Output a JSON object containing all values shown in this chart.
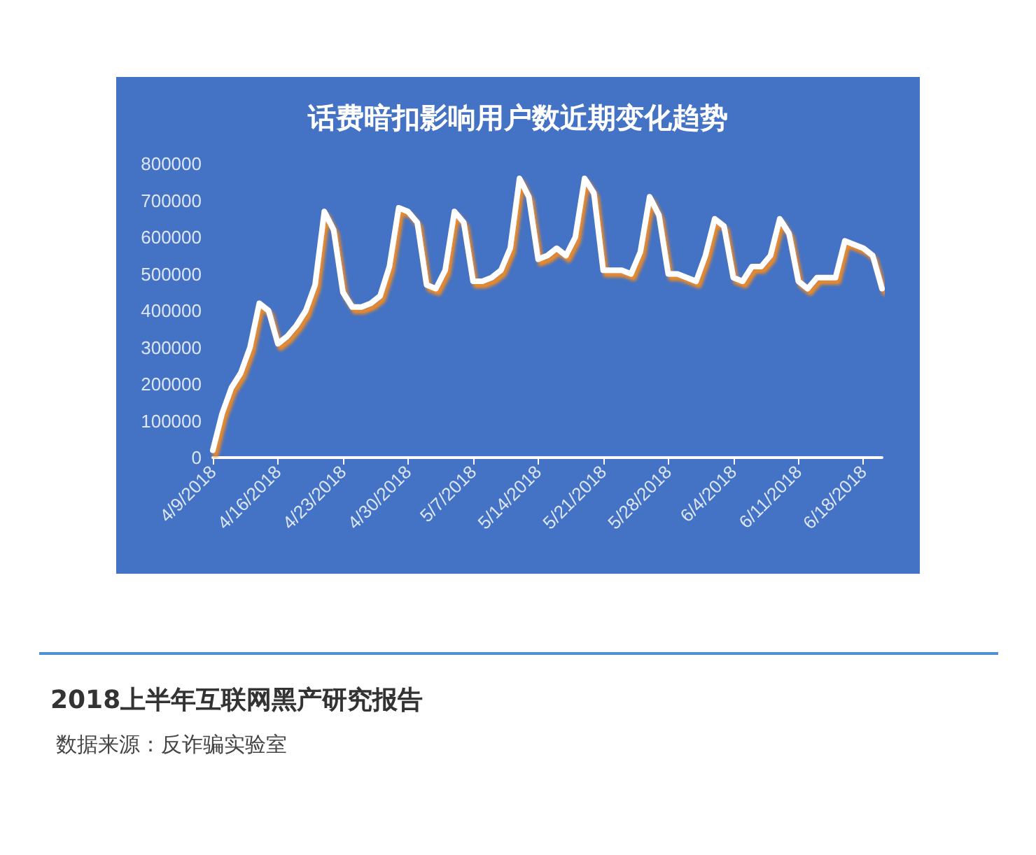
{
  "chart_data": {
    "type": "line",
    "title": "话费暗扣影响用户数近期变化趋势",
    "x": [
      "2018-04-09",
      "2018-04-10",
      "2018-04-11",
      "2018-04-12",
      "2018-04-13",
      "2018-04-14",
      "2018-04-15",
      "2018-04-16",
      "2018-04-17",
      "2018-04-18",
      "2018-04-19",
      "2018-04-20",
      "2018-04-21",
      "2018-04-22",
      "2018-04-23",
      "2018-04-24",
      "2018-04-25",
      "2018-04-26",
      "2018-04-27",
      "2018-04-28",
      "2018-04-29",
      "2018-04-30",
      "2018-05-01",
      "2018-05-02",
      "2018-05-03",
      "2018-05-04",
      "2018-05-05",
      "2018-05-06",
      "2018-05-07",
      "2018-05-08",
      "2018-05-09",
      "2018-05-10",
      "2018-05-11",
      "2018-05-12",
      "2018-05-13",
      "2018-05-14",
      "2018-05-15",
      "2018-05-16",
      "2018-05-17",
      "2018-05-18",
      "2018-05-19",
      "2018-05-20",
      "2018-05-21",
      "2018-05-22",
      "2018-05-23",
      "2018-05-24",
      "2018-05-25",
      "2018-05-26",
      "2018-05-27",
      "2018-05-28",
      "2018-05-29",
      "2018-05-30",
      "2018-05-31",
      "2018-06-01",
      "2018-06-02",
      "2018-06-03",
      "2018-06-04",
      "2018-06-05",
      "2018-06-06",
      "2018-06-07",
      "2018-06-08",
      "2018-06-09",
      "2018-06-10",
      "2018-06-11",
      "2018-06-12",
      "2018-06-13",
      "2018-06-14",
      "2018-06-15",
      "2018-06-16",
      "2018-06-17",
      "2018-06-18",
      "2018-06-19",
      "2018-06-20"
    ],
    "series": [
      {
        "color": "#ffffff",
        "values": [
          20000,
          120000,
          190000,
          230000,
          300000,
          420000,
          400000,
          310000,
          330000,
          360000,
          400000,
          470000,
          670000,
          620000,
          450000,
          410000,
          410000,
          420000,
          440000,
          520000,
          680000,
          670000,
          640000,
          470000,
          460000,
          510000,
          670000,
          640000,
          480000,
          480000,
          490000,
          510000,
          570000,
          760000,
          710000,
          540000,
          550000,
          570000,
          550000,
          600000,
          760000,
          720000,
          510000,
          510000,
          510000,
          500000,
          560000,
          710000,
          660000,
          500000,
          500000,
          490000,
          480000,
          550000,
          650000,
          630000,
          490000,
          480000,
          520000,
          520000,
          550000,
          650000,
          610000,
          480000,
          460000,
          490000,
          490000,
          490000,
          590000,
          580000,
          570000,
          550000,
          460000
        ]
      }
    ],
    "xlim": [
      "2018-04-09",
      "2018-06-20"
    ],
    "xticks": [
      {
        "value": "2018-04-09",
        "label": "4/9/2018"
      },
      {
        "value": "2018-04-16",
        "label": "4/16/2018"
      },
      {
        "value": "2018-04-23",
        "label": "4/23/2018"
      },
      {
        "value": "2018-04-30",
        "label": "4/30/2018"
      },
      {
        "value": "2018-05-07",
        "label": "5/7/2018"
      },
      {
        "value": "2018-05-14",
        "label": "5/14/2018"
      },
      {
        "value": "2018-05-21",
        "label": "5/21/2018"
      },
      {
        "value": "2018-05-28",
        "label": "5/28/2018"
      },
      {
        "value": "2018-06-04",
        "label": "6/4/2018"
      },
      {
        "value": "2018-06-11",
        "label": "6/11/2018"
      },
      {
        "value": "2018-06-18",
        "label": "6/18/2018"
      }
    ],
    "ylim": [
      0,
      800000
    ],
    "yticks": [
      0,
      100000,
      200000,
      300000,
      400000,
      500000,
      600000,
      700000,
      800000
    ],
    "grid": false,
    "marker": "none",
    "line_style": "solid",
    "annotations": [
      "2018上半年互联网黑产研究报告",
      "数据来源：反诈骗实验室"
    ]
  }
}
